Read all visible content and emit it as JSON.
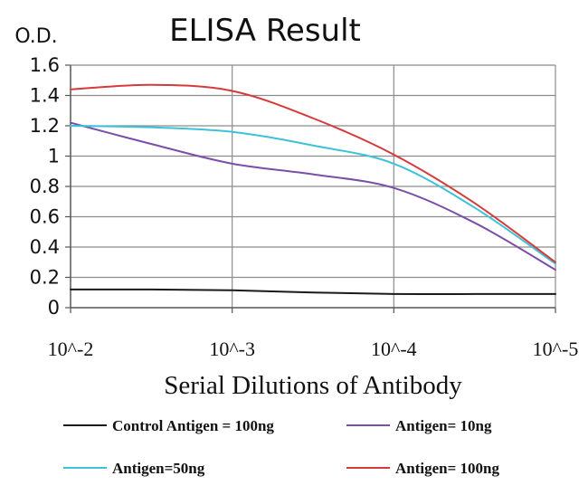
{
  "chart_data": {
    "type": "line",
    "title": "ELISA Result",
    "ylabel": "O.D.",
    "xlabel": "Serial Dilutions of Antibody",
    "x": [
      0,
      0.5,
      1,
      1.5,
      2,
      2.5,
      3
    ],
    "categories": [
      "10^-2",
      "10^-3",
      "10^-4",
      "10^-5"
    ],
    "yticks": [
      "0",
      "0.2",
      "0.4",
      "0.6",
      "0.8",
      "1",
      "1.2",
      "1.4",
      "1.6"
    ],
    "ylim": [
      0,
      1.6
    ],
    "xlim": [
      0,
      3
    ],
    "grid": true,
    "legend_position": "bottom",
    "series": [
      {
        "name": "Control Antigen = 100ng",
        "color": "#1a1a1a",
        "values": [
          0.12,
          0.12,
          0.115,
          0.1,
          0.09,
          0.09,
          0.09
        ]
      },
      {
        "name": "Antigen= 10ng",
        "color": "#7a4fa8",
        "values": [
          1.22,
          1.08,
          0.95,
          0.88,
          0.79,
          0.56,
          0.25
        ]
      },
      {
        "name": "Antigen=50ng",
        "color": "#3cc2d9",
        "values": [
          1.2,
          1.19,
          1.16,
          1.07,
          0.95,
          0.66,
          0.29
        ]
      },
      {
        "name": "Antigen= 100ng",
        "color": "#d63a3a",
        "values": [
          1.44,
          1.47,
          1.43,
          1.25,
          1.01,
          0.69,
          0.3
        ]
      }
    ]
  }
}
